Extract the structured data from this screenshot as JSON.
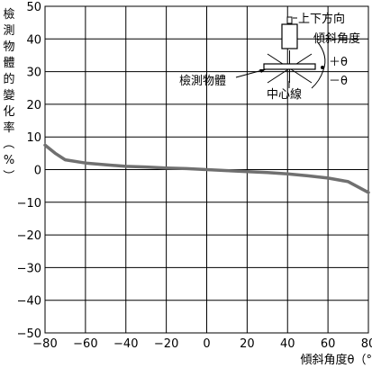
{
  "chart_data": {
    "type": "line",
    "ylabel": "檢測物體的變化率（%）",
    "xlabel": "傾斜角度θ（°",
    "xlim": [
      -80,
      80
    ],
    "ylim": [
      -50,
      50
    ],
    "x_ticks": [
      -80,
      -60,
      -40,
      -20,
      0,
      20,
      40,
      60,
      80
    ],
    "y_ticks": [
      50,
      40,
      30,
      20,
      10,
      0,
      -10,
      -20,
      -30,
      -40,
      -50
    ],
    "x_tick_labels": [
      "−80",
      "−60",
      "−40",
      "−20",
      "0",
      "20",
      "40",
      "60",
      "80"
    ],
    "y_tick_labels": [
      "50",
      "40",
      "30",
      "20",
      "10",
      "0",
      "−10",
      "−20",
      "−30",
      "−40",
      "−50"
    ],
    "grid": true,
    "series": [
      {
        "color": "#707070",
        "x": [
          -80,
          -75,
          -70,
          -60,
          -50,
          -40,
          -30,
          -20,
          -10,
          0,
          10,
          20,
          30,
          40,
          50,
          60,
          70,
          80
        ],
        "y": [
          7.5,
          5,
          3,
          2,
          1.5,
          1,
          0.8,
          0.5,
          0.3,
          0,
          -0.3,
          -0.6,
          -0.9,
          -1.3,
          -1.9,
          -2.6,
          -3.7,
          -7
        ]
      }
    ],
    "annotations": {
      "direction": "上下方向",
      "tilt": "傾斜角度",
      "plus_theta": "＋θ",
      "minus_theta": "－θ",
      "object": "檢測物體",
      "centerline": "中心線"
    }
  }
}
